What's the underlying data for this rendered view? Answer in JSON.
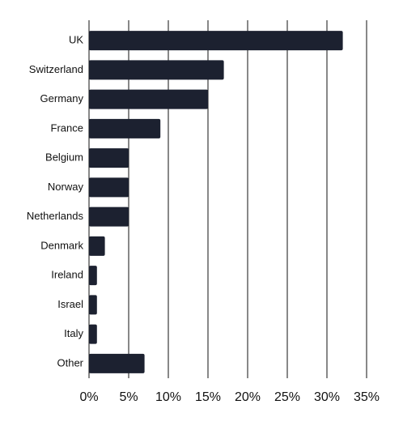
{
  "chart_data": {
    "type": "barh",
    "categories": [
      "UK",
      "Switzerland",
      "Germany",
      "France",
      "Belgium",
      "Norway",
      "Netherlands",
      "Denmark",
      "Ireland",
      "Israel",
      "Italy",
      "Other"
    ],
    "values": [
      32,
      17,
      15,
      9,
      5,
      5,
      5,
      2,
      1,
      1,
      1,
      7
    ],
    "color": "#1c2130",
    "xlim": [
      0,
      35
    ],
    "xticks": [
      {
        "value": 0,
        "label": "0%"
      },
      {
        "value": 5,
        "label": "5%"
      },
      {
        "value": 10,
        "label": "10%"
      },
      {
        "value": 15,
        "label": "15%"
      },
      {
        "value": 20,
        "label": "20%"
      },
      {
        "value": 25,
        "label": "25%"
      },
      {
        "value": 30,
        "label": "30%"
      },
      {
        "value": 35,
        "label": "35%"
      }
    ],
    "grid": true
  }
}
